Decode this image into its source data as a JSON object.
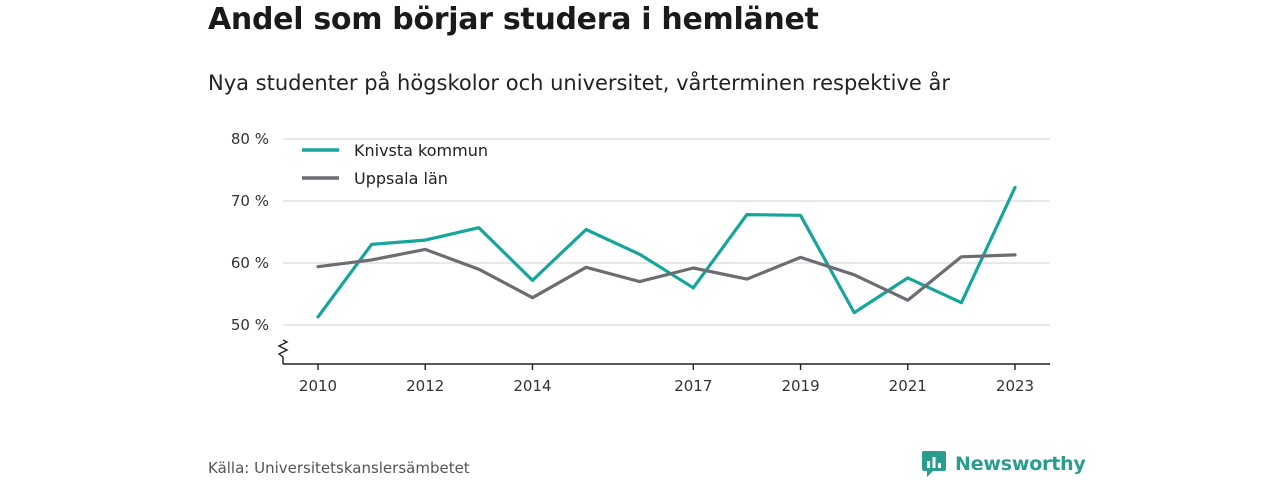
{
  "header": {
    "title": "Andel som börjar studera i hemlänet",
    "subtitle": "Nya studenter på högskolor och universitet, vårterminen respektive år"
  },
  "footer": {
    "source": "Källa: Universitetskanslersämbetet",
    "brand": "Newsworthy"
  },
  "colors": {
    "knivsta": "#16a59b",
    "uppsala": "#6e6c73",
    "grid": "#d9d9d9",
    "brand": "#2a9d8f"
  },
  "chart_data": {
    "type": "line",
    "x": [
      2010,
      2011,
      2012,
      2013,
      2014,
      2015,
      2016,
      2017,
      2018,
      2019,
      2020,
      2021,
      2022,
      2023
    ],
    "x_tick_labels": [
      "2010",
      "2012",
      "2014",
      "2017",
      "2019",
      "2021",
      "2023"
    ],
    "y_tick_labels": [
      "50 %",
      "60 %",
      "70 %",
      "80 %"
    ],
    "y_ticks": [
      50,
      60,
      70,
      80
    ],
    "ylim": [
      44,
      80
    ],
    "y_axis_break": true,
    "grid": true,
    "legend_position": "top-left",
    "series": [
      {
        "name": "Knivsta kommun",
        "color": "#16a59b",
        "values": [
          51.3,
          63.0,
          63.7,
          65.7,
          57.2,
          65.4,
          61.4,
          56.0,
          67.8,
          67.7,
          52.0,
          57.6,
          53.6,
          72.2
        ]
      },
      {
        "name": "Uppsala län",
        "color": "#6e6c73",
        "values": [
          59.4,
          60.5,
          62.2,
          59.0,
          54.4,
          59.3,
          57.0,
          59.2,
          57.4,
          60.9,
          58.1,
          54.0,
          61.0,
          61.3
        ]
      }
    ]
  }
}
